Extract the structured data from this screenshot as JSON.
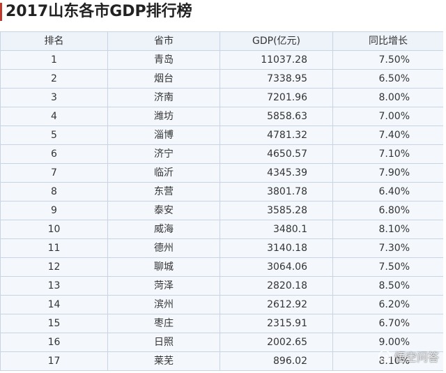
{
  "title": "2017山东各市GDP排行榜",
  "table": {
    "headers": [
      "排名",
      "省市",
      "GDP(亿元)",
      "同比增长"
    ],
    "rows": [
      {
        "rank": "1",
        "city": "青岛",
        "gdp": "11037.28",
        "growth": "7.50%"
      },
      {
        "rank": "2",
        "city": "烟台",
        "gdp": "7338.95",
        "growth": "6.50%"
      },
      {
        "rank": "3",
        "city": "济南",
        "gdp": "7201.96",
        "growth": "8.00%"
      },
      {
        "rank": "4",
        "city": "潍坊",
        "gdp": "5858.63",
        "growth": "7.00%"
      },
      {
        "rank": "5",
        "city": "淄博",
        "gdp": "4781.32",
        "growth": "7.40%"
      },
      {
        "rank": "6",
        "city": "济宁",
        "gdp": "4650.57",
        "growth": "7.10%"
      },
      {
        "rank": "7",
        "city": "临沂",
        "gdp": "4345.39",
        "growth": "7.90%"
      },
      {
        "rank": "8",
        "city": "东营",
        "gdp": "3801.78",
        "growth": "6.40%"
      },
      {
        "rank": "9",
        "city": "泰安",
        "gdp": "3585.28",
        "growth": "6.80%"
      },
      {
        "rank": "10",
        "city": "威海",
        "gdp": "3480.1",
        "growth": "8.10%"
      },
      {
        "rank": "11",
        "city": "德州",
        "gdp": "3140.18",
        "growth": "7.30%"
      },
      {
        "rank": "12",
        "city": "聊城",
        "gdp": "3064.06",
        "growth": "7.50%"
      },
      {
        "rank": "13",
        "city": "菏泽",
        "gdp": "2820.18",
        "growth": "8.50%"
      },
      {
        "rank": "14",
        "city": "滨州",
        "gdp": "2612.92",
        "growth": "6.20%"
      },
      {
        "rank": "15",
        "city": "枣庄",
        "gdp": "2315.91",
        "growth": "6.70%"
      },
      {
        "rank": "16",
        "city": "日照",
        "gdp": "2002.65",
        "growth": "9.00%"
      },
      {
        "rank": "17",
        "city": "莱芜",
        "gdp": "896.02",
        "growth": "8.10%"
      }
    ]
  },
  "watermark": {
    "text": "悟空问答",
    "icon": "wukong-logo-icon"
  },
  "colors": {
    "accent": "#c0392b",
    "header_bg": "#eef3fa",
    "cell_bg": "#f4f8fd",
    "border": "#c6d4e4"
  }
}
